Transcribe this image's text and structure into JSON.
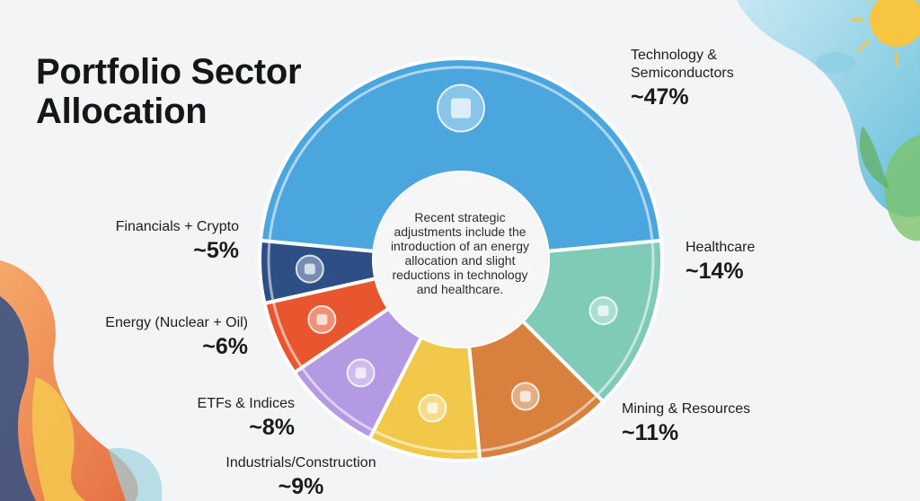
{
  "title": "Portfolio Sector Allocation",
  "title_lines": [
    "Portfolio Sector",
    "Allocation"
  ],
  "center_note": "Recent strategic adjustments include the introduction of an energy allocation and slight reductions in technology and healthcare.",
  "chart_data": {
    "type": "pie",
    "style": "donut",
    "title": "Portfolio Sector Allocation",
    "slices": [
      {
        "label": "Technology & Semiconductors",
        "value": 47,
        "display": "~47%",
        "color": "#4aa6dd",
        "icon": "microchip-icon"
      },
      {
        "label": "Healthcare",
        "value": 14,
        "display": "~14%",
        "color": "#7fcbb8",
        "icon": "dna-medical-icon"
      },
      {
        "label": "Mining & Resources",
        "value": 11,
        "display": "~11%",
        "color": "#d8813f",
        "icon": "crystal-ore-icon"
      },
      {
        "label": "Industrials/Construction",
        "value": 9,
        "display": "~9%",
        "color": "#f2c84b",
        "icon": "crane-gear-icon"
      },
      {
        "label": "ETFs & Indices",
        "value": 8,
        "display": "~8%",
        "color": "#b49ae3",
        "icon": "currency-network-icon"
      },
      {
        "label": "Energy (Nuclear + Oil)",
        "value": 6,
        "display": "~6%",
        "color": "#e8562f",
        "icon": "nuclear-sun-icon"
      },
      {
        "label": "Financials + Crypto",
        "value": 5,
        "display": "~5%",
        "color": "#2d4f86",
        "icon": "coin-safe-icon"
      }
    ]
  },
  "labels": {
    "tech": {
      "name_lines": [
        "Technology &",
        "Semiconductors"
      ],
      "pct": "~47%"
    },
    "health": {
      "name": "Healthcare",
      "pct": "~14%"
    },
    "mining": {
      "name": "Mining & Resources",
      "pct": "~11%"
    },
    "industrials": {
      "name": "Industrials/Construction",
      "pct": "~9%"
    },
    "etfs": {
      "name": "ETFs & Indices",
      "pct": "~8%"
    },
    "energy": {
      "name": "Energy (Nuclear + Oil)",
      "pct": "~6%"
    },
    "financials": {
      "name": "Financials + Crypto",
      "pct": "~5%"
    }
  }
}
